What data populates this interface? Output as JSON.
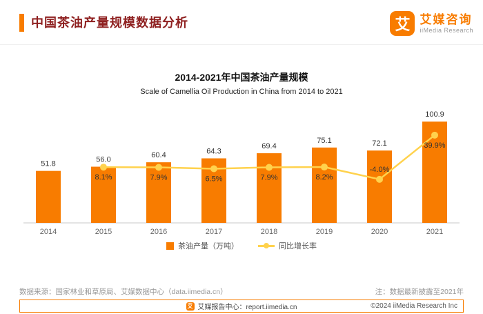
{
  "header": {
    "title": "中国茶油产量规模数据分析",
    "accent_color": "#F87C00"
  },
  "logo": {
    "icon_glyph": "艾",
    "name": "艾媒咨询",
    "subtitle": "iiMedia Research"
  },
  "chart_data": {
    "type": "bar",
    "title": "2014-2021年中国茶油产量规模",
    "subtitle": "Scale of Camellia Oil Production in China from 2014 to 2021",
    "categories": [
      "2014",
      "2015",
      "2016",
      "2017",
      "2018",
      "2019",
      "2020",
      "2021"
    ],
    "series": [
      {
        "name": "茶油产量（万吨）",
        "type": "bar",
        "color": "#F87C00",
        "values": [
          51.8,
          56.0,
          60.4,
          64.3,
          69.4,
          75.1,
          72.1,
          100.9
        ],
        "labels": [
          "51.8",
          "56.0",
          "60.4",
          "64.3",
          "69.4",
          "75.1",
          "72.1",
          "100.9"
        ]
      },
      {
        "name": "同比增长率",
        "type": "line",
        "color": "#FFD24D",
        "values": [
          null,
          8.1,
          7.9,
          6.5,
          7.9,
          8.2,
          -4.0,
          39.9
        ],
        "labels": [
          "",
          "8.1%",
          "7.9%",
          "6.5%",
          "7.9%",
          "8.2%",
          "-4.0%",
          "39.9%"
        ]
      }
    ],
    "ylim_bar": [
      0,
      110
    ],
    "ylim_line": [
      -20,
      48
    ],
    "grid": false,
    "legend_position": "bottom"
  },
  "footer": {
    "source": "数据来源：国家林业和草原局、艾媒数据中心（data.iimedia.cn）",
    "note": "注：数据最新披露至2021年",
    "report_center": "艾媒报告中心：report.iimedia.cn",
    "copyright": "©2024 iiMedia Research Inc"
  }
}
